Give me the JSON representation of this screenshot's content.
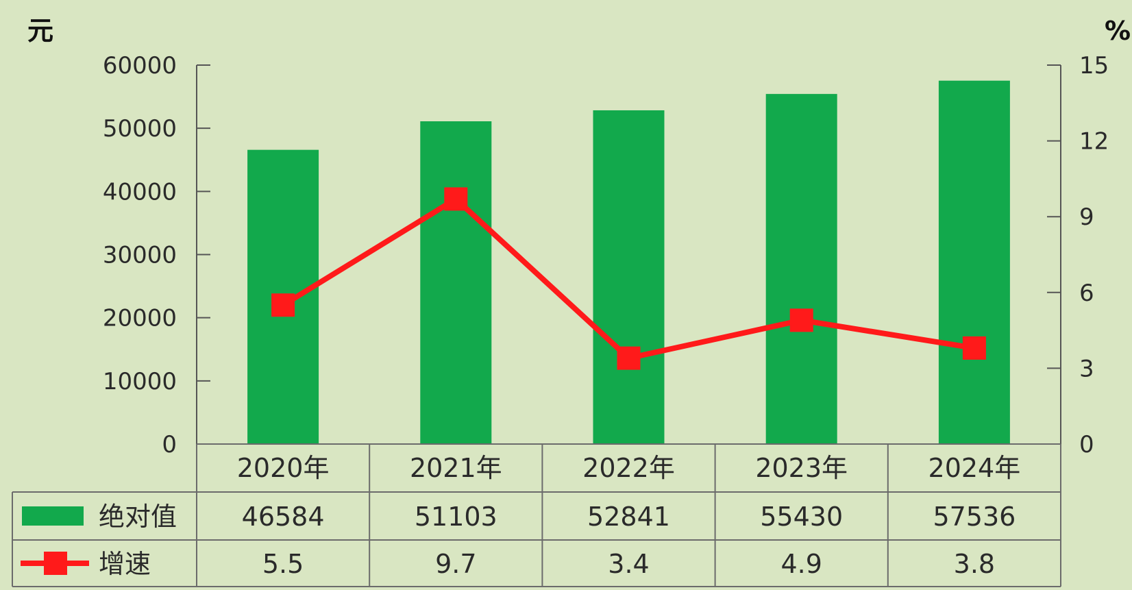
{
  "chart_data": {
    "type": "bar",
    "categories": [
      "2020年",
      "2021年",
      "2022年",
      "2023年",
      "2024年"
    ],
    "series": [
      {
        "name": "绝对值",
        "type": "bar",
        "axis": "left",
        "color": "#12a94c",
        "values": [
          46584,
          51103,
          52841,
          55430,
          57536
        ]
      },
      {
        "name": "增速",
        "type": "line",
        "axis": "right",
        "color": "#ff1a1a",
        "values": [
          5.5,
          9.7,
          3.4,
          4.9,
          3.8
        ]
      }
    ],
    "left_axis": {
      "unit": "元",
      "range": [
        0,
        60000
      ],
      "ticks": [
        "0",
        "10000",
        "20000",
        "30000",
        "40000",
        "50000",
        "60000"
      ]
    },
    "right_axis": {
      "unit": "%",
      "range": [
        0,
        15
      ],
      "ticks": [
        "0",
        "3",
        "6",
        "9",
        "12",
        "15"
      ]
    },
    "table": {
      "row_labels": [
        "绝对值",
        "增速"
      ],
      "rows": [
        [
          "46584",
          "51103",
          "52841",
          "55430",
          "57536"
        ],
        [
          "5.5",
          "9.7",
          "3.4",
          "4.9",
          "3.8"
        ]
      ]
    },
    "grid": false
  }
}
